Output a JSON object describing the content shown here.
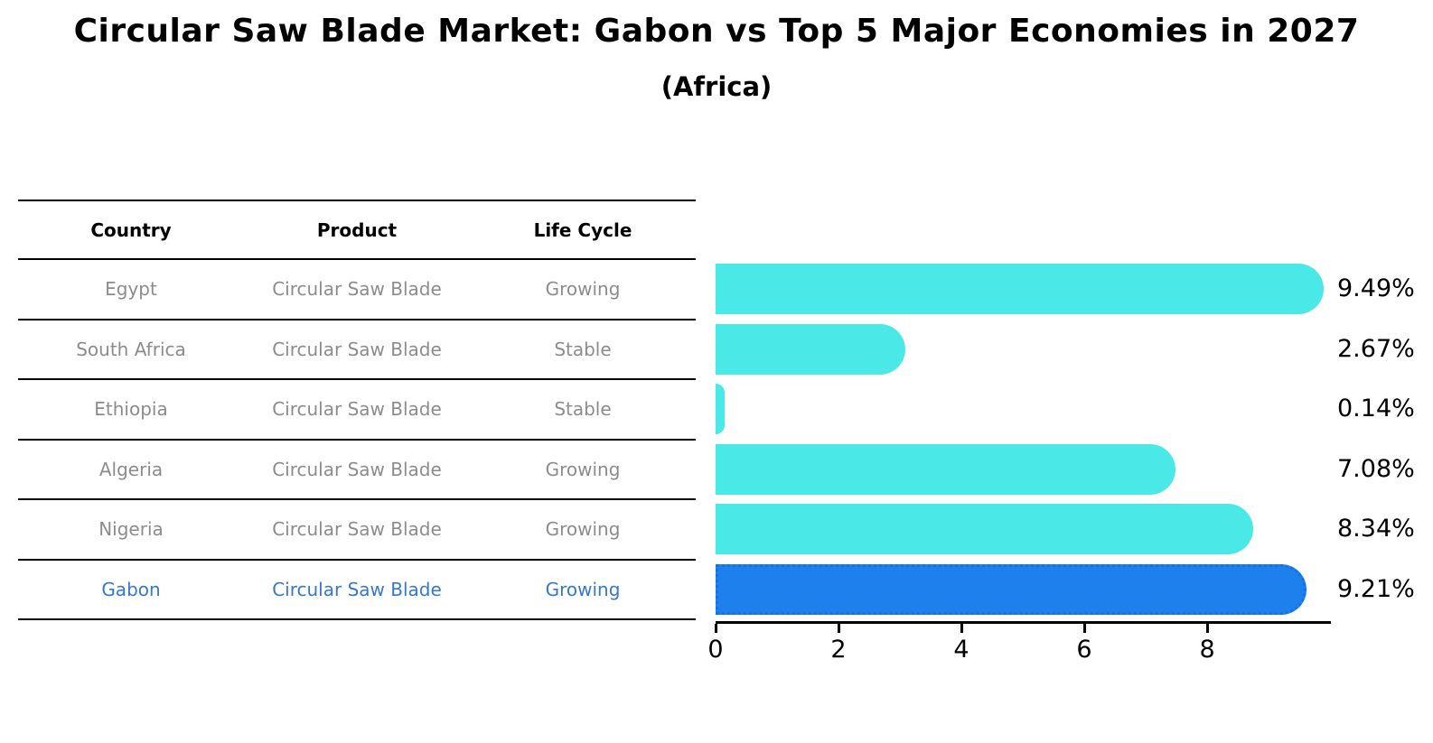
{
  "header": {
    "title": "Circular Saw Blade Market: Gabon vs Top 5 Major Economies in 2027",
    "subtitle": "(Africa)"
  },
  "table": {
    "headers": [
      "Country",
      "Product",
      "Life Cycle"
    ],
    "rows": [
      {
        "country": "Egypt",
        "product": "Circular Saw Blade",
        "life_cycle": "Growing",
        "highlight": false
      },
      {
        "country": "South Africa",
        "product": "Circular Saw Blade",
        "life_cycle": "Stable",
        "highlight": false
      },
      {
        "country": "Ethiopia",
        "product": "Circular Saw Blade",
        "life_cycle": "Stable",
        "highlight": false
      },
      {
        "country": "Algeria",
        "product": "Circular Saw Blade",
        "life_cycle": "Growing",
        "highlight": false
      },
      {
        "country": "Nigeria",
        "product": "Circular Saw Blade",
        "life_cycle": "Growing",
        "highlight": false
      },
      {
        "country": "Gabon",
        "product": "Circular Saw Blade",
        "life_cycle": "Growing",
        "highlight": true
      }
    ]
  },
  "chart_data": {
    "type": "bar",
    "orientation": "horizontal",
    "title": "Circular Saw Blade Market: Gabon vs Top 5 Major Economies in 2027 (Africa)",
    "xlabel": "",
    "ylabel": "",
    "categories": [
      "Egypt",
      "South Africa",
      "Ethiopia",
      "Algeria",
      "Nigeria",
      "Gabon"
    ],
    "values": [
      9.49,
      2.67,
      0.14,
      7.08,
      8.34,
      9.21
    ],
    "value_labels": [
      "9.49%",
      "2.67%",
      "0.14%",
      "7.08%",
      "8.34%",
      "9.21%"
    ],
    "x_ticks": [
      0,
      2,
      4,
      6,
      8
    ],
    "xlim": [
      0,
      9.97
    ],
    "grid": false,
    "legend": "none",
    "highlight_index": 5
  },
  "colors": {
    "bar": "#4BE8E8",
    "highlight_bar": "#1E80EC",
    "highlight_border": "#1372E4",
    "table_text": "#8C8C8C",
    "highlight_text": "#3579C8",
    "ink": "#000000"
  }
}
